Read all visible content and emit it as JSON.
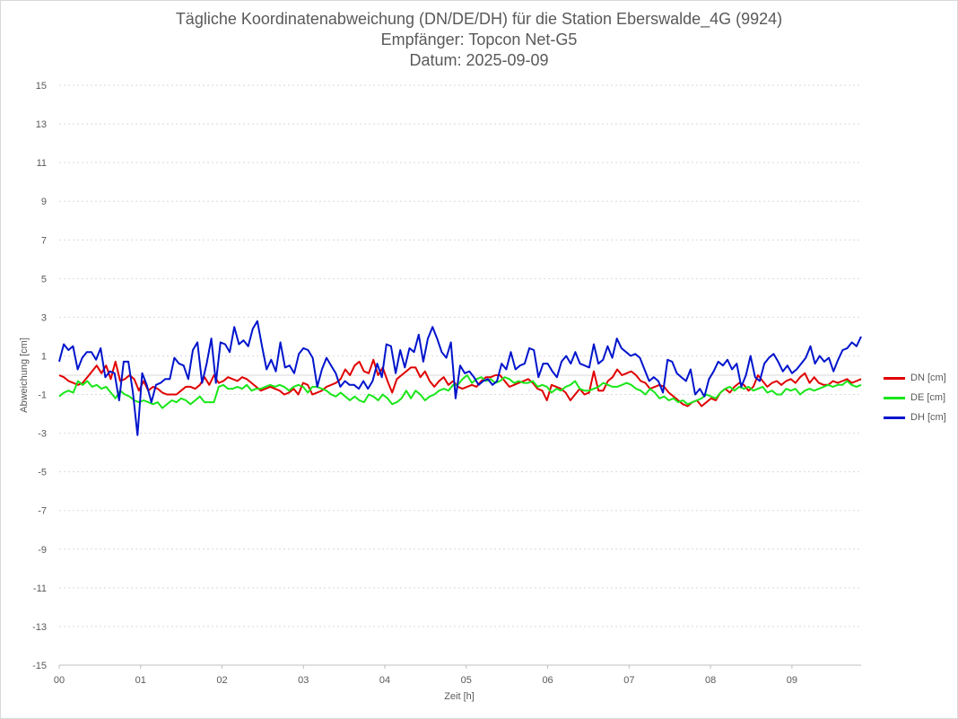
{
  "chart_data": {
    "type": "line",
    "title": "Tägliche Koordinatenabweichung (DN/DE/DH) für die Station Eberswalde_4G (9924)",
    "subtitle1": "Empfänger: Topcon Net-G5",
    "subtitle2": "Datum: 2025-09-09",
    "xlabel": "Zeit [h]",
    "ylabel": "Abweichung [cm]",
    "ylim": [
      -15,
      15
    ],
    "xlim": [
      0,
      9.85
    ],
    "yticks": [
      "15",
      "13",
      "11",
      "9",
      "7",
      "5",
      "3",
      "1",
      "-1",
      "-3",
      "-5",
      "-7",
      "-9",
      "-11",
      "-13",
      "-15"
    ],
    "xticks": [
      "00",
      "01",
      "02",
      "03",
      "04",
      "05",
      "06",
      "07",
      "08",
      "09"
    ],
    "grid": true,
    "legend_position": "right",
    "series": [
      {
        "name": "DN [cm]",
        "color": "#e00000",
        "values": [
          0.0,
          -0.1,
          -0.3,
          -0.4,
          -0.5,
          -0.4,
          -0.1,
          0.2,
          0.5,
          0.1,
          0.5,
          -0.2,
          0.7,
          -0.3,
          -0.2,
          0.0,
          -0.2,
          -0.8,
          -0.3,
          -0.8,
          -0.6,
          -0.7,
          -0.9,
          -1.0,
          -1.0,
          -1.0,
          -0.8,
          -0.6,
          -0.6,
          -0.7,
          -0.5,
          -0.1,
          -0.5,
          0.0,
          -0.4,
          -0.3,
          -0.1,
          -0.2,
          -0.3,
          -0.1,
          -0.2,
          -0.4,
          -0.6,
          -0.8,
          -0.7,
          -0.6,
          -0.7,
          -0.8,
          -1.0,
          -0.9,
          -0.7,
          -1.0,
          -0.4,
          -0.5,
          -1.0,
          -0.9,
          -0.8,
          -0.6,
          -0.5,
          -0.4,
          -0.2,
          0.3,
          0.0,
          0.5,
          0.7,
          0.2,
          0.1,
          0.8,
          0.0,
          0.4,
          -0.3,
          -0.9,
          -0.2,
          0.0,
          0.2,
          0.4,
          0.4,
          -0.1,
          0.2,
          -0.3,
          -0.6,
          -0.3,
          -0.1,
          -0.5,
          -0.3,
          -0.6,
          -0.7,
          -0.6,
          -0.5,
          -0.6,
          -0.3,
          -0.1,
          -0.1,
          0.0,
          0.0,
          -0.3,
          -0.6,
          -0.5,
          -0.4,
          -0.3,
          -0.2,
          -0.4,
          -0.7,
          -0.8,
          -1.3,
          -0.5,
          -0.6,
          -0.7,
          -0.9,
          -1.3,
          -1.0,
          -0.7,
          -1.0,
          -0.9,
          0.2,
          -0.8,
          -0.8,
          -0.3,
          -0.1,
          0.3,
          0.0,
          0.1,
          0.2,
          0.0,
          -0.3,
          -0.4,
          -0.7,
          -0.6,
          -0.5,
          -0.6,
          -0.9,
          -1.1,
          -1.3,
          -1.5,
          -1.6,
          -1.4,
          -1.3,
          -1.6,
          -1.4,
          -1.2,
          -1.3,
          -0.9,
          -0.7,
          -0.9,
          -0.6,
          -0.4,
          -0.5,
          -0.8,
          -0.6,
          0.0,
          -0.3,
          -0.6,
          -0.4,
          -0.3,
          -0.5,
          -0.3,
          -0.2,
          -0.4,
          -0.1,
          0.1,
          -0.4,
          -0.1,
          -0.4,
          -0.5,
          -0.5,
          -0.3,
          -0.4,
          -0.3,
          -0.2,
          -0.4,
          -0.3,
          -0.2
        ]
      },
      {
        "name": "DE [cm]",
        "color": "#19e619",
        "values": [
          -1.1,
          -0.9,
          -0.8,
          -0.9,
          -0.3,
          -0.5,
          -0.3,
          -0.6,
          -0.5,
          -0.7,
          -0.6,
          -0.9,
          -1.2,
          -0.8,
          -1.0,
          -1.1,
          -1.3,
          -1.4,
          -1.3,
          -1.4,
          -1.5,
          -1.4,
          -1.7,
          -1.5,
          -1.3,
          -1.4,
          -1.2,
          -1.3,
          -1.5,
          -1.3,
          -1.1,
          -1.4,
          -1.4,
          -1.4,
          -0.6,
          -0.5,
          -0.7,
          -0.7,
          -0.6,
          -0.7,
          -0.5,
          -0.8,
          -0.7,
          -0.7,
          -0.6,
          -0.5,
          -0.6,
          -0.5,
          -0.6,
          -0.8,
          -0.6,
          -0.5,
          -0.6,
          -0.9,
          -0.6,
          -0.6,
          -0.7,
          -0.8,
          -1.0,
          -1.1,
          -0.9,
          -1.1,
          -1.3,
          -1.1,
          -1.3,
          -1.4,
          -1.0,
          -1.1,
          -1.3,
          -1.0,
          -1.2,
          -1.5,
          -1.4,
          -1.2,
          -0.8,
          -1.2,
          -0.8,
          -1.0,
          -1.3,
          -1.1,
          -1.0,
          -0.8,
          -0.7,
          -0.8,
          -0.5,
          -0.5,
          -0.2,
          0.0,
          -0.4,
          -0.2,
          -0.1,
          -0.3,
          -0.2,
          -0.4,
          -0.3,
          -0.1,
          -0.2,
          -0.4,
          -0.3,
          -0.4,
          -0.4,
          -0.3,
          -0.6,
          -0.5,
          -0.6,
          -0.9,
          -0.7,
          -0.8,
          -0.6,
          -0.5,
          -0.3,
          -0.7,
          -0.8,
          -0.8,
          -0.7,
          -0.6,
          -0.4,
          -0.5,
          -0.6,
          -0.6,
          -0.5,
          -0.4,
          -0.5,
          -0.7,
          -0.8,
          -1.0,
          -0.7,
          -0.9,
          -1.2,
          -1.1,
          -1.3,
          -1.2,
          -1.4,
          -1.3,
          -1.5,
          -1.4,
          -1.3,
          -1.2,
          -1.0,
          -1.1,
          -1.2,
          -0.9,
          -0.7,
          -0.6,
          -0.8,
          -0.6,
          -0.7,
          -0.6,
          -0.8,
          -0.7,
          -0.6,
          -0.9,
          -0.8,
          -1.0,
          -1.0,
          -0.7,
          -0.8,
          -0.7,
          -1.0,
          -0.8,
          -0.7,
          -0.8,
          -0.7,
          -0.6,
          -0.5,
          -0.6,
          -0.5,
          -0.5,
          -0.3,
          -0.5,
          -0.6,
          -0.5
        ]
      },
      {
        "name": "DH [cm]",
        "color": "#0014cc",
        "values": [
          0.7,
          1.6,
          1.3,
          1.5,
          0.3,
          0.9,
          1.2,
          1.2,
          0.8,
          1.4,
          -0.1,
          0.2,
          0.1,
          -1.3,
          0.7,
          0.7,
          -0.9,
          -3.1,
          0.1,
          -0.5,
          -1.4,
          -0.5,
          -0.4,
          -0.2,
          -0.2,
          0.9,
          0.6,
          0.5,
          -0.2,
          1.3,
          1.7,
          -0.4,
          0.6,
          1.9,
          -0.4,
          1.7,
          1.6,
          1.2,
          2.5,
          1.6,
          1.8,
          1.5,
          2.4,
          2.8,
          1.5,
          0.3,
          0.8,
          0.2,
          1.7,
          0.4,
          0.5,
          0.1,
          1.1,
          1.4,
          1.3,
          0.9,
          -0.6,
          0.3,
          0.9,
          0.5,
          0.1,
          -0.6,
          -0.3,
          -0.5,
          -0.5,
          -0.7,
          -0.3,
          -0.7,
          -0.3,
          0.6,
          -0.1,
          1.6,
          1.5,
          0.1,
          1.3,
          0.4,
          1.4,
          1.2,
          2.1,
          0.7,
          1.9,
          2.5,
          1.9,
          1.2,
          0.9,
          1.7,
          -1.2,
          0.5,
          0.1,
          0.2,
          -0.1,
          -0.5,
          -0.3,
          -0.2,
          -0.5,
          -0.3,
          0.6,
          0.3,
          1.2,
          0.3,
          0.5,
          0.6,
          1.4,
          1.3,
          -0.1,
          0.6,
          0.6,
          0.2,
          -0.1,
          0.7,
          1.0,
          0.6,
          1.2,
          0.6,
          0.5,
          0.4,
          1.6,
          0.6,
          0.8,
          1.5,
          0.9,
          1.9,
          1.4,
          1.2,
          1.0,
          1.1,
          0.9,
          0.3,
          -0.3,
          -0.1,
          -0.3,
          -0.9,
          0.8,
          0.7,
          0.1,
          -0.1,
          -0.3,
          0.3,
          -1.0,
          -0.7,
          -1.1,
          -0.2,
          0.2,
          0.7,
          0.5,
          0.8,
          0.3,
          0.6,
          -0.6,
          0.0,
          1.0,
          -0.1,
          -0.3,
          0.6,
          0.9,
          1.1,
          0.7,
          0.2,
          0.5,
          0.1,
          0.3,
          0.6,
          0.9,
          1.5,
          0.6,
          1.0,
          0.7,
          0.9,
          0.2,
          0.8,
          1.3,
          1.4,
          1.7,
          1.5,
          2.0
        ]
      }
    ]
  }
}
